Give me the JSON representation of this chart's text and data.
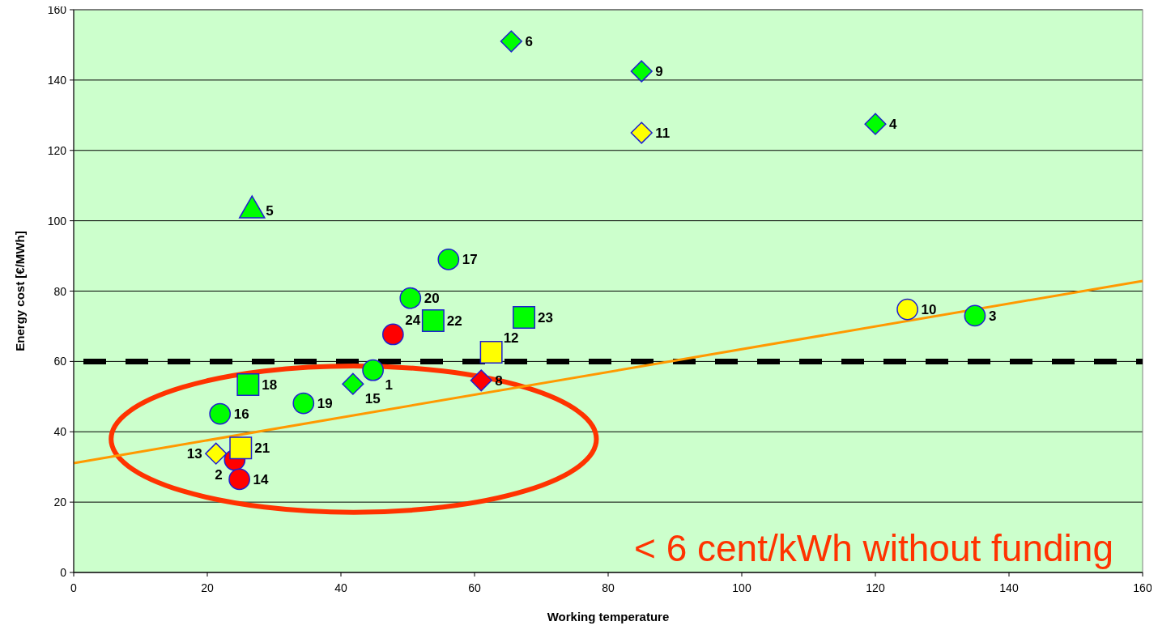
{
  "chart_data": {
    "type": "scatter",
    "xlabel": "Working temperature",
    "ylabel": "Energy cost [€/MWh]",
    "xlim": [
      0,
      160
    ],
    "ylim": [
      0,
      160
    ],
    "xticks": [
      0,
      20,
      40,
      60,
      80,
      100,
      120,
      140,
      160
    ],
    "yticks": [
      0,
      20,
      40,
      60,
      80,
      100,
      120,
      140,
      160
    ],
    "grid": "y",
    "series": [
      {
        "type": "scatter",
        "marker": "diamond",
        "color": "#00ff00",
        "x": [
          65.5,
          85,
          120,
          41.8
        ],
        "values": [
          151,
          142.5,
          127.5,
          53.6
        ]
      },
      {
        "type": "scatter",
        "marker": "diamond",
        "color": "#ffff00",
        "x": [
          85,
          21.3
        ],
        "values": [
          125,
          33.8
        ]
      },
      {
        "type": "scatter",
        "marker": "diamond",
        "color": "#ff0000",
        "x": [
          61
        ],
        "values": [
          54.6
        ]
      },
      {
        "type": "scatter",
        "marker": "triangle",
        "color": "#00ff00",
        "x": [
          26.7
        ],
        "values": [
          102.9
        ]
      },
      {
        "type": "scatter",
        "marker": "circle",
        "color": "#00ff00",
        "x": [
          56.1,
          50.4,
          134.9,
          44.8,
          34.4,
          21.9
        ],
        "values": [
          89,
          78,
          73,
          57.5,
          48.1,
          45.1
        ]
      },
      {
        "type": "scatter",
        "marker": "circle",
        "color": "#ffff00",
        "x": [
          124.8
        ],
        "values": [
          74.8
        ]
      },
      {
        "type": "scatter",
        "marker": "circle",
        "color": "#ff0000",
        "x": [
          47.8,
          24.1,
          24.8
        ],
        "values": [
          67.7,
          32,
          26.5
        ]
      },
      {
        "type": "scatter",
        "marker": "square",
        "color": "#00ff00",
        "x": [
          53.8,
          67.4,
          26.1
        ],
        "values": [
          71.6,
          72.5,
          53.4
        ]
      },
      {
        "type": "scatter",
        "marker": "square",
        "color": "#ffff00",
        "x": [
          62.5,
          25
        ],
        "values": [
          62.6,
          35.4
        ]
      },
      {
        "type": "line",
        "marker": "none",
        "color": "#ff9900",
        "x": [
          0,
          160
        ],
        "values": [
          31.1,
          82.9
        ]
      }
    ],
    "ref_lines": [
      {
        "axis": "y",
        "value": 60,
        "color": "#000000",
        "line_style": "dashed"
      }
    ],
    "annotations": [
      {
        "text": "6",
        "x": 65.5,
        "y": 151
      },
      {
        "text": "9",
        "x": 85,
        "y": 142.5
      },
      {
        "text": "4",
        "x": 120,
        "y": 127.5
      },
      {
        "text": "11",
        "x": 85,
        "y": 125
      },
      {
        "text": "5",
        "x": 26.7,
        "y": 102.9
      },
      {
        "text": "17",
        "x": 56.1,
        "y": 89
      },
      {
        "text": "20",
        "x": 50.4,
        "y": 78
      },
      {
        "text": "22",
        "x": 53.8,
        "y": 71.6
      },
      {
        "text": "23",
        "x": 67.4,
        "y": 72.5
      },
      {
        "text": "10",
        "x": 124.8,
        "y": 74.8
      },
      {
        "text": "3",
        "x": 134.9,
        "y": 73
      },
      {
        "text": "24",
        "x": 47.8,
        "y": 67.7
      },
      {
        "text": "12",
        "x": 62.5,
        "y": 62.6
      },
      {
        "text": "8",
        "x": 61,
        "y": 54.6
      },
      {
        "text": "1",
        "x": 44.8,
        "y": 57.5
      },
      {
        "text": "15",
        "x": 41.8,
        "y": 53.6
      },
      {
        "text": "18",
        "x": 26.1,
        "y": 53.4
      },
      {
        "text": "19",
        "x": 34.4,
        "y": 48.1
      },
      {
        "text": "16",
        "x": 21.9,
        "y": 45.1
      },
      {
        "text": "21",
        "x": 25,
        "y": 35.4
      },
      {
        "text": "13",
        "x": 21.3,
        "y": 33.8
      },
      {
        "text": "2",
        "x": 24.1,
        "y": 32
      },
      {
        "text": "14",
        "x": 24.8,
        "y": 26.5
      },
      "< 6 cent/kWh without funding"
    ]
  }
}
